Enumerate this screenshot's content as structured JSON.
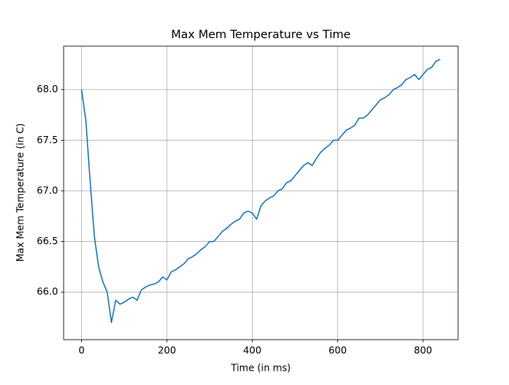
{
  "chart_data": {
    "type": "line",
    "title": "Max Mem Temperature vs Time",
    "x_label": "Time (in ms)",
    "y_label": "Max Mem Temperature (in C)",
    "x": [
      0,
      10,
      20,
      30,
      40,
      50,
      60,
      70,
      80,
      90,
      100,
      110,
      120,
      130,
      140,
      150,
      160,
      170,
      180,
      190,
      200,
      210,
      220,
      230,
      240,
      250,
      260,
      270,
      280,
      290,
      300,
      310,
      320,
      330,
      340,
      350,
      360,
      370,
      380,
      390,
      400,
      410,
      420,
      430,
      440,
      450,
      460,
      470,
      480,
      490,
      500,
      510,
      520,
      530,
      540,
      550,
      560,
      570,
      580,
      590,
      600,
      610,
      620,
      630,
      640,
      650,
      660,
      670,
      680,
      690,
      700,
      710,
      720,
      730,
      740,
      750,
      760,
      770,
      780,
      790,
      800,
      810,
      820,
      830,
      840
    ],
    "series": [
      {
        "name": "Max Mem Temperature",
        "color": "#1f77b4",
        "values": [
          68.0,
          67.7,
          67.1,
          66.55,
          66.25,
          66.1,
          66.0,
          65.7,
          65.92,
          65.88,
          65.9,
          65.93,
          65.95,
          65.92,
          66.02,
          66.05,
          66.07,
          66.08,
          66.1,
          66.15,
          66.12,
          66.2,
          66.22,
          66.25,
          66.28,
          66.33,
          66.35,
          66.38,
          66.42,
          66.45,
          66.5,
          66.5,
          66.55,
          66.6,
          66.63,
          66.67,
          66.7,
          66.72,
          66.78,
          66.8,
          66.78,
          66.72,
          66.85,
          66.9,
          66.93,
          66.95,
          67.0,
          67.02,
          67.08,
          67.1,
          67.15,
          67.2,
          67.25,
          67.28,
          67.25,
          67.32,
          67.38,
          67.42,
          67.45,
          67.5,
          67.5,
          67.55,
          67.6,
          67.62,
          67.65,
          67.72,
          67.72,
          67.75,
          67.8,
          67.85,
          67.9,
          67.92,
          67.95,
          68.0,
          68.02,
          68.05,
          68.1,
          68.12,
          68.15,
          68.1,
          68.15,
          68.2,
          68.22,
          68.28,
          68.3
        ]
      }
    ],
    "xlim": [
      -42,
      882
    ],
    "ylim": [
      65.53,
      68.43
    ],
    "xticks": [
      0,
      200,
      400,
      600,
      800
    ],
    "yticks": [
      {
        "value": 66.0,
        "label": "66.0"
      },
      {
        "value": 66.5,
        "label": "66.5"
      },
      {
        "value": 67.0,
        "label": "67.0"
      },
      {
        "value": 67.5,
        "label": "67.5"
      },
      {
        "value": 68.0,
        "label": "68.0"
      }
    ],
    "grid": true
  }
}
